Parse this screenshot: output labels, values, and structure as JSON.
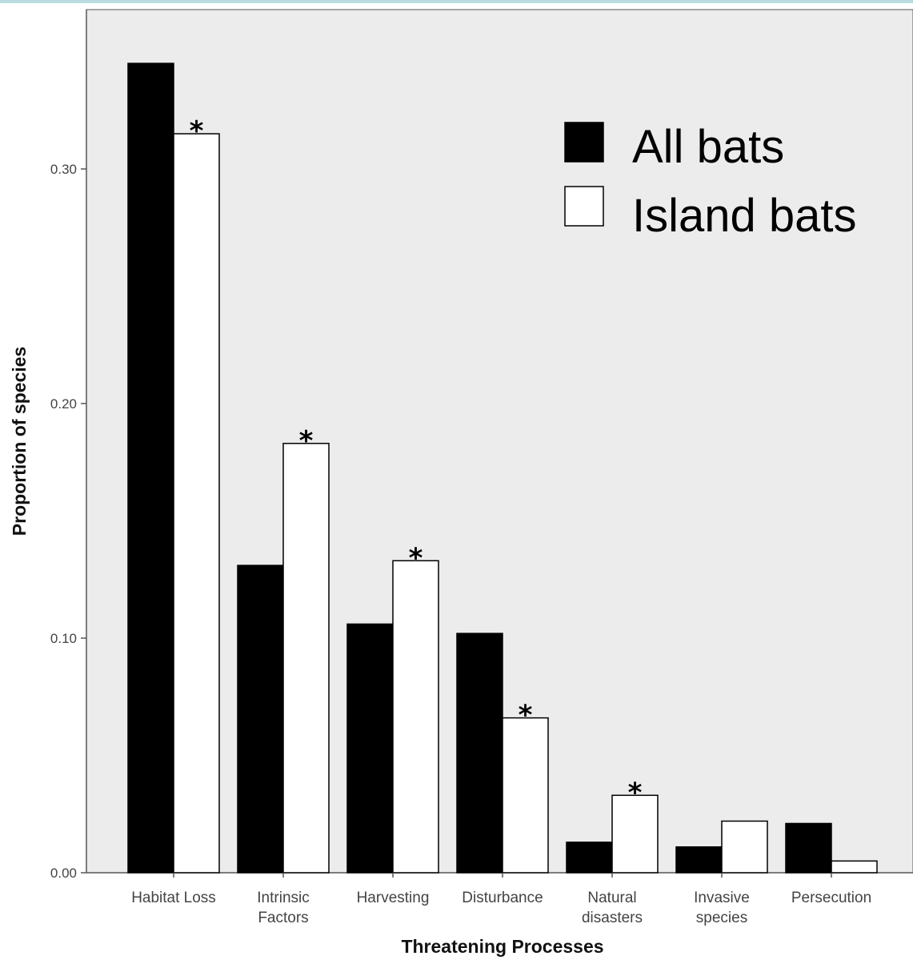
{
  "chart_data": {
    "type": "bar",
    "xlabel": "Threatening Processes",
    "ylabel": "Proportion of species",
    "ylim": [
      0,
      0.35
    ],
    "yticks": [
      "0.00",
      "0.10",
      "0.20",
      "0.30"
    ],
    "grid": false,
    "legend_position": "top-right",
    "categories": [
      [
        "Habitat Loss"
      ],
      [
        "Intrinsic",
        "Factors"
      ],
      [
        "Harvesting"
      ],
      [
        "Disturbance"
      ],
      [
        "Natural",
        "disasters"
      ],
      [
        "Invasive",
        "species"
      ],
      [
        "Persecution"
      ]
    ],
    "series": [
      {
        "name": "All bats",
        "color": "#000000",
        "values": [
          0.345,
          0.131,
          0.106,
          0.102,
          0.013,
          0.011,
          0.021
        ]
      },
      {
        "name": "Island bats",
        "color": "#ffffff",
        "values": [
          0.315,
          0.183,
          0.133,
          0.066,
          0.033,
          0.022,
          0.005
        ]
      }
    ],
    "annotations": {
      "symbol": "*",
      "series": "Island bats",
      "categories": [
        0,
        1,
        2,
        3,
        4
      ]
    },
    "colors": {
      "plot_background": "#ececec",
      "bar_stroke": "#000000"
    }
  }
}
